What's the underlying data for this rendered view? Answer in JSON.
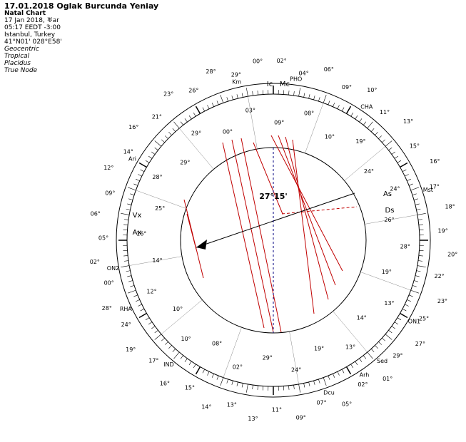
{
  "header": {
    "title": "17.01.2018 Oglak Burcunda Yeniay",
    "subtitle": "Natal Chart",
    "lines": [
      "17 Jan 2018, ♅ar",
      "05:17  EEDT  -3:00",
      "Istanbul, Turkey",
      "41°N01' 028°E58'"
    ],
    "settings": [
      "Geocentric",
      "Tropical",
      "Placidus",
      "True Node"
    ]
  },
  "center_label": "27°15'",
  "points": [
    "PHO",
    "Km",
    "CHA",
    "Mst",
    "ON1",
    "Sed",
    "Arh",
    "Dcu",
    "IND",
    "RHA",
    "ON2",
    "Ari"
  ],
  "outer_degrees": [
    "00°",
    "29°",
    "28°",
    "26°",
    "23°",
    "21°",
    "16°",
    "14°",
    "12°",
    "09°",
    "06°",
    "05°",
    "02°",
    "00°",
    "28°",
    "24°",
    "19°",
    "17°",
    "16°",
    "15°",
    "14°",
    "13°",
    "13°",
    "11°",
    "09°",
    "07°",
    "05°",
    "02°",
    "01°",
    "29°",
    "27°",
    "25°",
    "23°",
    "22°",
    "20°",
    "19°",
    "18°",
    "17°",
    "16°",
    "15°",
    "13°",
    "11°",
    "10°",
    "09°",
    "06°",
    "04°",
    "02°"
  ],
  "cusp_degrees": [
    "03°",
    "00°",
    "29°",
    "29°",
    "28°",
    "25°",
    "16°",
    "14°",
    "12°",
    "10°",
    "10°",
    "08°",
    "02°",
    "29°",
    "24°",
    "19°",
    "13°",
    "14°",
    "13°",
    "19°",
    "28°",
    "26°",
    "24°",
    "24°",
    "19°",
    "10°",
    "08°",
    "09°"
  ],
  "house_labels": [
    "Ic",
    "Mc",
    "As",
    "Ds",
    "Vx",
    "Ax"
  ]
}
